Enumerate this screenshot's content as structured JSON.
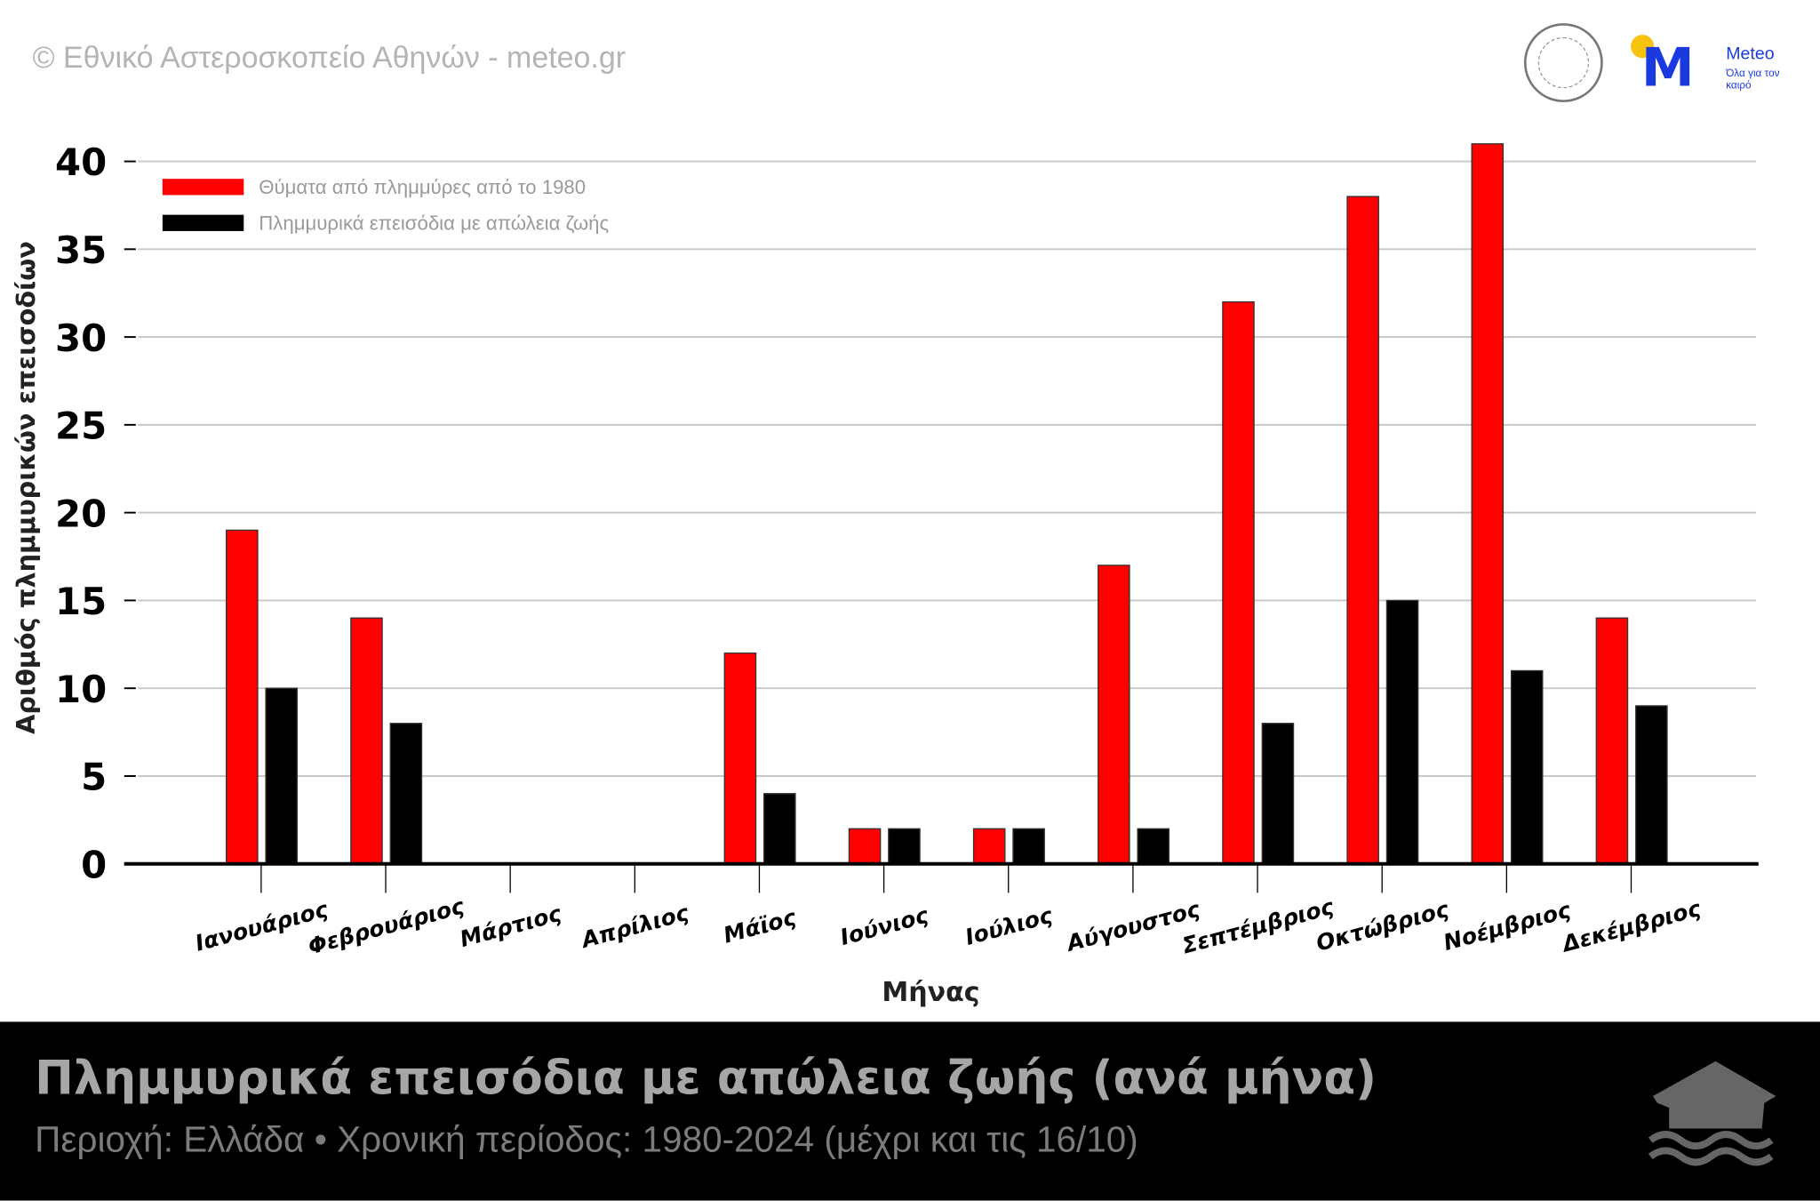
{
  "header": {
    "copyright": "© Εθνικό Αστεροσκοπείο Αθηνών - meteo.gr",
    "logo_word": "Meteo",
    "logo_tagline": "Όλα για τον καιρό"
  },
  "footer": {
    "title": "Πλημμυρικά επεισόδια με απώλεια ζωής (ανά μήνα)",
    "subtitle": "Περιοχή: Ελλάδα • Χρονική περίοδος: 1980-2024 (μέχρι και τις 16/10)"
  },
  "chart_data": {
    "type": "bar",
    "title": "Πλημμυρικά επεισόδια με απώλεια ζωής (ανά μήνα)",
    "xlabel": "Μήνας",
    "ylabel": "Αριθμός πλημμυρικών επεισοδίων",
    "ylim": [
      0,
      40
    ],
    "yticks": [
      0,
      5,
      10,
      15,
      20,
      25,
      30,
      35,
      40
    ],
    "grid": true,
    "legend": "top-left",
    "categories": [
      "Ιανουάριος",
      "Φεβρουάριος",
      "Μάρτιος",
      "Απρίλιος",
      "Μάϊος",
      "Ιούνιος",
      "Ιούλιος",
      "Αύγουστος",
      "Σεπτέμβριος",
      "Οκτώβριος",
      "Νοέμβριος",
      "Δεκέμβριος"
    ],
    "series": [
      {
        "name": "Θύματα από πλημμύρες από το 1980",
        "color": "#ff0000",
        "values": [
          19,
          14,
          0,
          0,
          12,
          2,
          2,
          17,
          32,
          38,
          41,
          14
        ]
      },
      {
        "name": "Πλημμυρικά επεισόδια με απώλεια ζωής",
        "color": "#000000",
        "values": [
          10,
          8,
          0,
          0,
          4,
          2,
          2,
          2,
          8,
          15,
          11,
          9
        ]
      }
    ]
  }
}
